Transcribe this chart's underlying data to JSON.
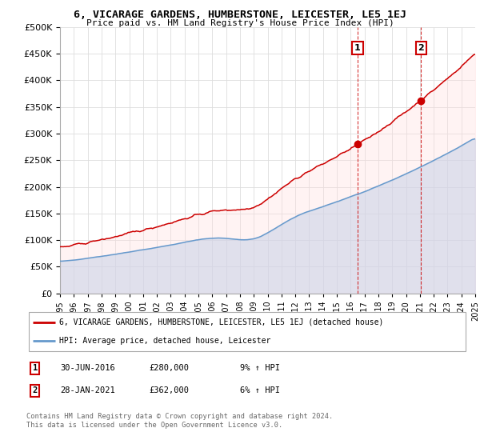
{
  "title": "6, VICARAGE GARDENS, HUMBERSTONE, LEICESTER, LE5 1EJ",
  "subtitle": "Price paid vs. HM Land Registry's House Price Index (HPI)",
  "legend_line1": "6, VICARAGE GARDENS, HUMBERSTONE, LEICESTER, LE5 1EJ (detached house)",
  "legend_line2": "HPI: Average price, detached house, Leicester",
  "annotation1_date": "30-JUN-2016",
  "annotation1_price": "£280,000",
  "annotation1_hpi": "9% ↑ HPI",
  "annotation2_date": "28-JAN-2021",
  "annotation2_price": "£362,000",
  "annotation2_hpi": "6% ↑ HPI",
  "footer": "Contains HM Land Registry data © Crown copyright and database right 2024.\nThis data is licensed under the Open Government Licence v3.0.",
  "red_color": "#cc0000",
  "blue_color": "#6699cc",
  "blue_fill": "#aaccee",
  "ylim": [
    0,
    500000
  ],
  "yticks": [
    0,
    50000,
    100000,
    150000,
    200000,
    250000,
    300000,
    350000,
    400000,
    450000,
    500000
  ],
  "sale1_x": 2016.5,
  "sale1_y": 280000,
  "sale2_x": 2021.08,
  "sale2_y": 362000,
  "xmin": 1995,
  "xmax": 2025
}
